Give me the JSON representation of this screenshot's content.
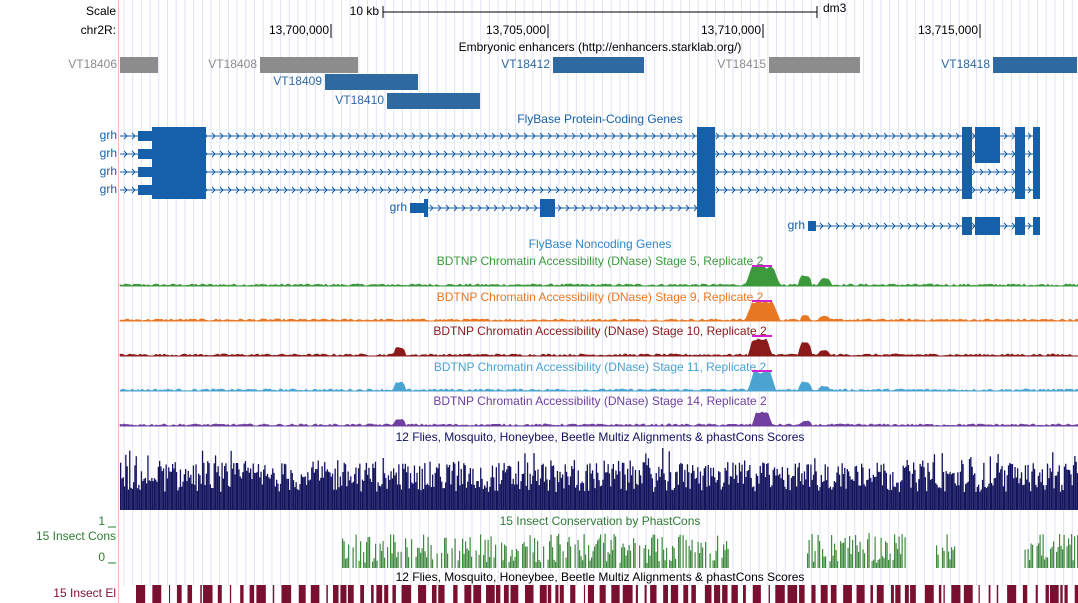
{
  "ruler": {
    "scale_label": "Scale",
    "chrom": "chr2R:",
    "scale_bar": "10 kb",
    "assembly": "dm3",
    "positions": [
      "13,700,000",
      "13,705,000",
      "13,710,000",
      "13,715,000"
    ]
  },
  "tracks": {
    "enhancers": {
      "title": "Embryonic enhancers (http://enhancers.starklab.org/)",
      "items": [
        "VT18406",
        "VT18408",
        "VT18409",
        "VT18410",
        "VT18412",
        "VT18415",
        "VT18418"
      ]
    },
    "genes": {
      "title": "FlyBase Protein-Coding Genes",
      "labels": [
        "grh",
        "grh",
        "grh",
        "grh",
        "grh",
        "grh"
      ]
    },
    "noncoding": {
      "title": "FlyBase Noncoding Genes"
    },
    "dnase": [
      "BDTNP Chromatin Accessibility (DNase) Stage 5, Replicate 2",
      "BDTNP Chromatin Accessibility (DNase) Stage 9, Replicate 2",
      "BDTNP Chromatin Accessibility (DNase) Stage 10, Replicate 2",
      "BDTNP Chromatin Accessibility (DNase) Stage 11, Replicate 2",
      "BDTNP Chromatin Accessibility (DNase) Stage 14, Replicate 2"
    ],
    "multiz": {
      "title": "12 Flies, Mosquito, Honeybee, Beetle Multiz Alignments & phastCons Scores"
    },
    "cons": {
      "title": "15 Insect Conservation by PhastCons",
      "label": "15 Insect Cons",
      "max": "1",
      "min": "0"
    },
    "elements": {
      "title": "12 Flies, Mosquito, Honeybee, Beetle Multiz Alignments & phastCons Scores",
      "label": "15 Insect El"
    }
  }
}
